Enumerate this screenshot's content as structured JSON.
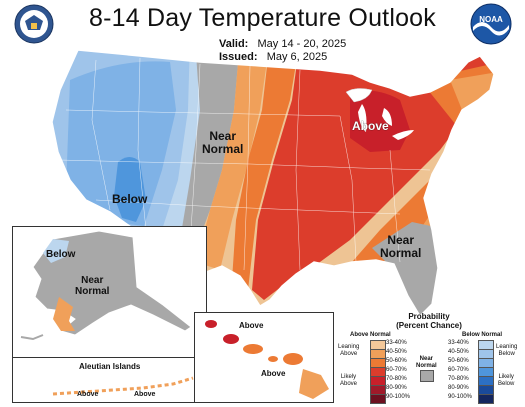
{
  "title": "8-14 Day Temperature Outlook",
  "valid_label": "Valid:",
  "valid_value": "May 14 - 20, 2025",
  "issued_label": "Issued:",
  "issued_value": "May 6, 2025",
  "logos": {
    "left": "seal-icon",
    "right": "noaa-logo-icon",
    "noaa_text": "NOAA"
  },
  "map_labels": {
    "near_normal_west": "Near\nNormal",
    "below_sw": "Below",
    "above_ne": "Above",
    "near_normal_se": "Near\nNormal",
    "ak_below": "Below",
    "ak_near_normal": "Near\nNormal",
    "hi_above_1": "Above",
    "hi_above_2": "Above",
    "aleutian_title": "Aleutian Islands",
    "aleutian_above_1": "Above",
    "aleutian_above_2": "Above"
  },
  "legend": {
    "title": "Probability",
    "subtitle": "(Percent Chance)",
    "above_header": "Above Normal",
    "below_header": "Below Normal",
    "leaning_above": "Leaning\nAbove",
    "likely_above": "Likely\nAbove",
    "leaning_below": "Leaning\nBelow",
    "likely_below": "Likely\nBelow",
    "near_normal": "Near\nNormal",
    "above_bins": [
      "33-40%",
      "40-50%",
      "50-60%",
      "60-70%",
      "70-80%",
      "80-90%",
      "90-100%"
    ],
    "below_bins": [
      "33-40%",
      "40-50%",
      "50-60%",
      "60-70%",
      "70-80%",
      "80-90%",
      "90-100%"
    ],
    "above_colors": [
      "#f3c89a",
      "#f0a05a",
      "#ec7a34",
      "#dc3d2c",
      "#c8202a",
      "#a01a2a",
      "#6e1020"
    ],
    "below_colors": [
      "#bcd6ee",
      "#9fc4ea",
      "#7fb2e6",
      "#4f96dc",
      "#2c70c4",
      "#1a4a9a",
      "#14265e"
    ],
    "near_color": "#a8a8a8"
  }
}
